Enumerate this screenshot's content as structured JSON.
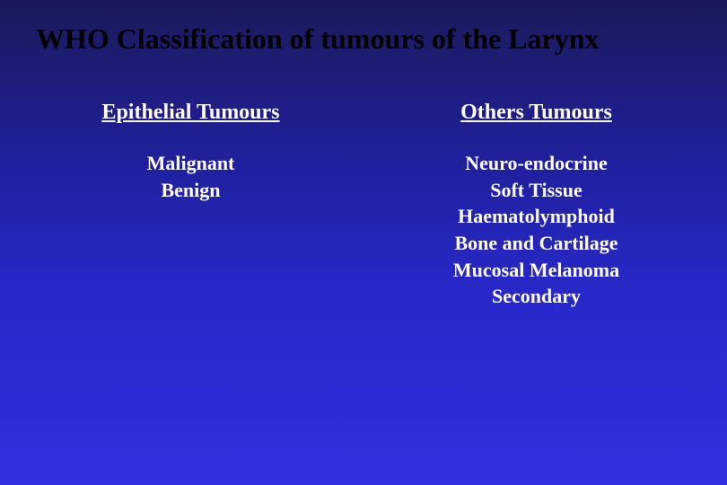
{
  "slide": {
    "title": "WHO Classification of tumours of the Larynx",
    "background_gradient": [
      "#1a1a5a",
      "#2020a0",
      "#2828c8",
      "#3030e0"
    ],
    "title_color": "#000000",
    "text_color": "#ffffff",
    "title_fontsize": 32,
    "heading_fontsize": 24,
    "item_fontsize": 22,
    "font_family": "Times New Roman",
    "columns": {
      "left": {
        "heading": "Epithelial Tumours",
        "items": [
          "Malignant",
          "Benign"
        ]
      },
      "right": {
        "heading": "Others Tumours",
        "items": [
          "Neuro-endocrine",
          "Soft Tissue",
          "Haematolymphoid",
          "Bone and Cartilage",
          "Mucosal Melanoma",
          "Secondary"
        ]
      }
    }
  }
}
